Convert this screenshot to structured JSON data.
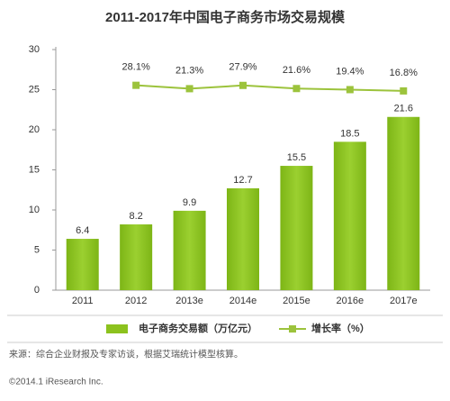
{
  "chart_data": {
    "type": "bar",
    "title": "2011-2017年中国电子商务市场交易规模",
    "categories": [
      "2011",
      "2012",
      "2013e",
      "2014e",
      "2015e",
      "2016e",
      "2017e"
    ],
    "series": [
      {
        "name": "电子商务交易额（万亿元）",
        "type": "bar",
        "color": "#8cc21e",
        "values": [
          6.4,
          8.2,
          9.9,
          12.7,
          15.5,
          18.5,
          21.6
        ]
      },
      {
        "name": "增长率（%）",
        "type": "line",
        "axis": "y2",
        "color": "#9cc33c",
        "values": [
          null,
          28.1,
          21.3,
          27.9,
          21.6,
          19.4,
          16.8
        ],
        "value_labels": [
          null,
          "28.1%",
          "21.3%",
          "27.9%",
          "21.6%",
          "19.4%",
          "16.8%"
        ]
      }
    ],
    "ylim": [
      0,
      30
    ],
    "yticks": [
      0,
      5,
      10,
      15,
      20,
      25,
      30
    ],
    "y2lim": [
      -384,
      100
    ],
    "source": "来源：综合企业财报及专家访谈，根据艾瑞统计模型核算。",
    "copyright": "©2014.1 iResearch Inc."
  }
}
